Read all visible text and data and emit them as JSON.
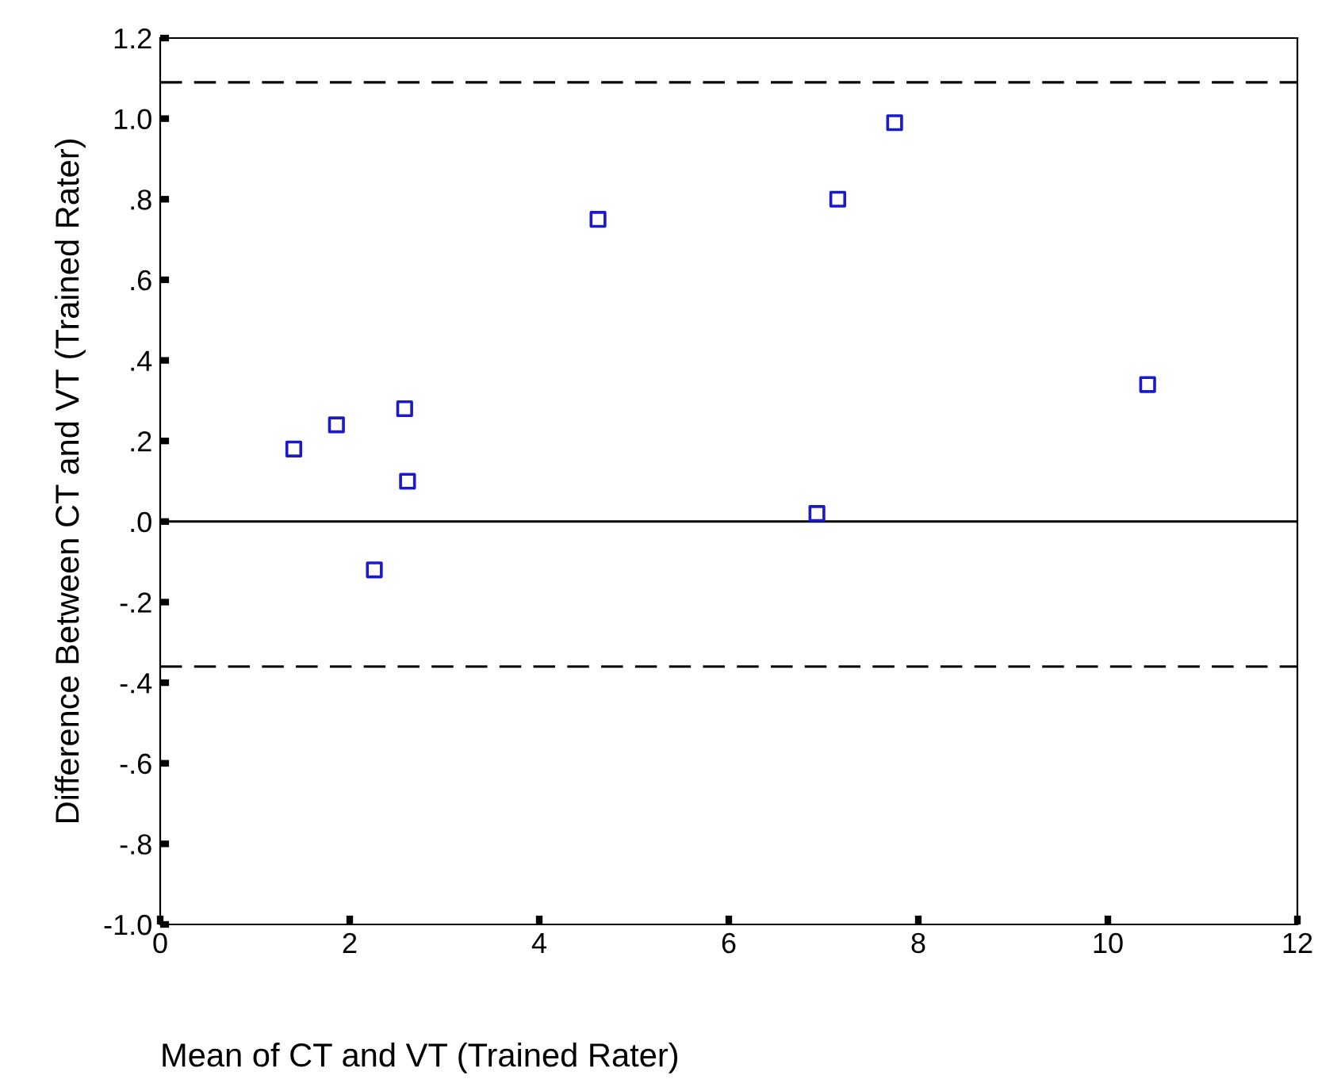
{
  "chart_data": {
    "type": "scatter",
    "xlabel": "Mean of CT and VT (Trained Rater)",
    "ylabel": "Difference Between CT and VT (Trained Rater)",
    "x": [
      1.41,
      1.86,
      2.58,
      2.61,
      2.26,
      4.62,
      6.93,
      7.15,
      7.75,
      10.42
    ],
    "series": [
      {
        "color": "#1a1acc",
        "values": [
          0.18,
          0.24,
          0.28,
          0.1,
          -0.12,
          0.75,
          0.02,
          0.8,
          0.99,
          0.34
        ]
      }
    ],
    "marker": "square",
    "grid": false,
    "legend": false,
    "xlim": [
      0,
      12
    ],
    "xticks": [
      0,
      2,
      4,
      6,
      8,
      10,
      12
    ],
    "ylim": [
      -1.0,
      1.2
    ],
    "yticks": [
      {
        "value": -1.0,
        "label": "-1.0"
      },
      {
        "value": -0.8,
        "label": "-.8"
      },
      {
        "value": -0.6,
        "label": "-.6"
      },
      {
        "value": -0.4,
        "label": "-.4"
      },
      {
        "value": -0.2,
        "label": "-.2"
      },
      {
        "value": 0.0,
        "label": ".0"
      },
      {
        "value": 0.2,
        "label": ".2"
      },
      {
        "value": 0.4,
        "label": ".4"
      },
      {
        "value": 0.6,
        "label": ".6"
      },
      {
        "value": 0.8,
        "label": ".8"
      },
      {
        "value": 1.0,
        "label": "1.0"
      },
      {
        "value": 1.2,
        "label": "1.2"
      }
    ],
    "ref_lines": [
      {
        "axis": "y",
        "value": 1.09,
        "line_style": "dashed",
        "color": "#000000"
      },
      {
        "axis": "y",
        "value": 0.0,
        "line_style": "solid",
        "color": "#000000"
      },
      {
        "axis": "y",
        "value": -0.36,
        "line_style": "dashed",
        "color": "#000000"
      }
    ]
  }
}
